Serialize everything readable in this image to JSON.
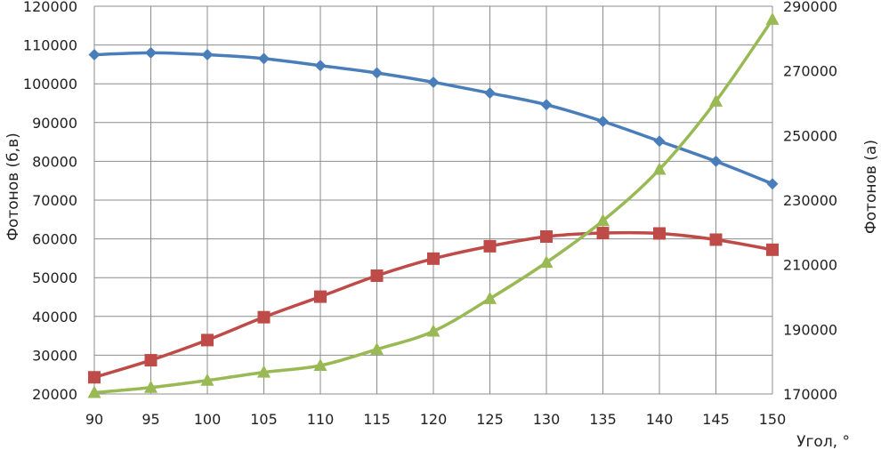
{
  "chart_data": {
    "type": "line",
    "xlabel": "Угол, °",
    "ylabel_left": "Фотонов (б,в)",
    "ylabel_right": "Фотонов (а)",
    "xlim": [
      90,
      150
    ],
    "ylim_left": [
      20000,
      120000
    ],
    "ylim_right": [
      170000,
      290000
    ],
    "x_ticks": [
      90,
      95,
      100,
      105,
      110,
      115,
      120,
      125,
      130,
      135,
      140,
      145,
      150
    ],
    "y_left_ticks": [
      20000,
      30000,
      40000,
      50000,
      60000,
      70000,
      80000,
      90000,
      100000,
      110000,
      120000
    ],
    "y_right_ticks": [
      170000,
      190000,
      210000,
      230000,
      250000,
      270000,
      290000
    ],
    "grid": true,
    "x": [
      90,
      95,
      100,
      105,
      110,
      115,
      120,
      125,
      130,
      135,
      140,
      145,
      150
    ],
    "series": [
      {
        "axis": "left",
        "color": "#4a7ebb",
        "marker": "diamond",
        "values": [
          107500,
          108000,
          107500,
          106500,
          104700,
          102800,
          100400,
          97600,
          94600,
          90300,
          85200,
          80000,
          74200
        ]
      },
      {
        "axis": "left",
        "color": "#be4b48",
        "marker": "square",
        "values": [
          24300,
          28700,
          33900,
          39800,
          45100,
          50500,
          54900,
          58100,
          60600,
          61500,
          61400,
          59800,
          57200
        ]
      },
      {
        "axis": "right",
        "color": "#98b954",
        "marker": "triangle",
        "values": [
          170400,
          172000,
          174200,
          176700,
          178800,
          183800,
          189400,
          199500,
          210700,
          223600,
          239500,
          260600,
          285900
        ]
      }
    ]
  }
}
